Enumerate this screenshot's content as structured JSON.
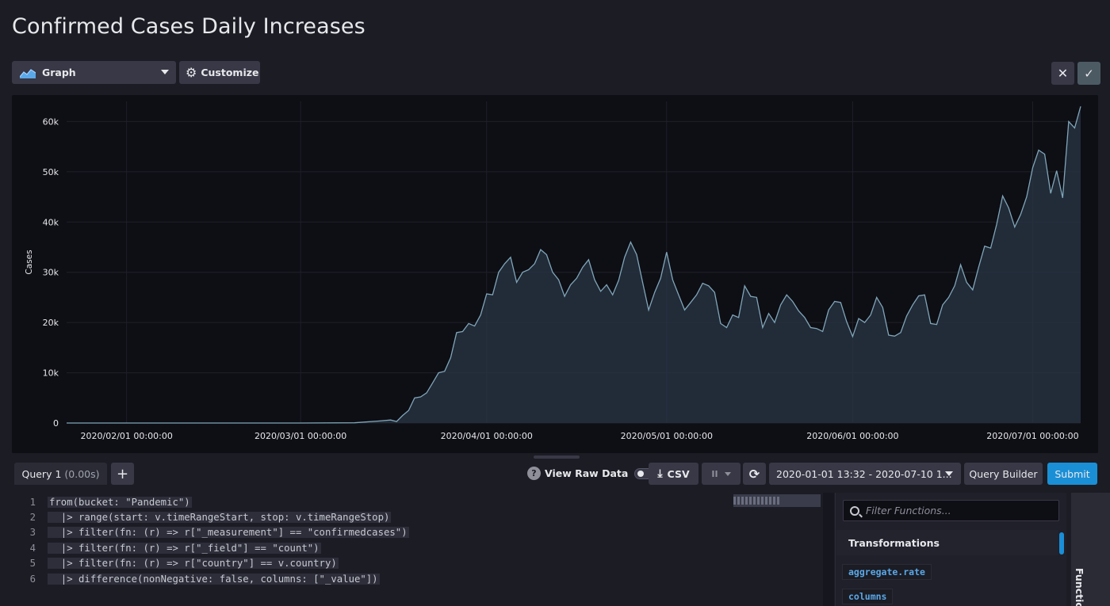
{
  "page": {
    "title": "Confirmed Cases Daily Increases"
  },
  "toolbar": {
    "view_type": "Graph",
    "customize_label": "Customize",
    "close_icon": "close-icon",
    "confirm_icon": "check-icon"
  },
  "chart_data": {
    "type": "area",
    "title": "",
    "ylabel": "Cases",
    "xlabel": "",
    "ylim": [
      0,
      64000
    ],
    "yticks": [
      0,
      10000,
      20000,
      30000,
      40000,
      50000,
      60000
    ],
    "ytick_labels": [
      "0",
      "10k",
      "20k",
      "30k",
      "40k",
      "50k",
      "60k"
    ],
    "xtick_labels": [
      "2020/02/01 00:00:00",
      "2020/03/01 00:00:00",
      "2020/04/01 00:00:00",
      "2020/05/01 00:00:00",
      "2020/06/01 00:00:00",
      "2020/07/01 00:00:00"
    ],
    "x_range": [
      "2020-01-22",
      "2020-07-09"
    ],
    "grid": true,
    "line_color": "#7fa6b8",
    "fill_color": "#2a3644",
    "series": [
      {
        "x": [
          "2020-01-22",
          "2020-02-01",
          "2020-02-15",
          "2020-03-01",
          "2020-03-10",
          "2020-03-14",
          "2020-03-16",
          "2020-03-17",
          "2020-03-18",
          "2020-03-19",
          "2020-03-20",
          "2020-03-21",
          "2020-03-22",
          "2020-03-23",
          "2020-03-24",
          "2020-03-25",
          "2020-03-26",
          "2020-03-27",
          "2020-03-28",
          "2020-03-29",
          "2020-03-30",
          "2020-03-31",
          "2020-04-01",
          "2020-04-02",
          "2020-04-03",
          "2020-04-04",
          "2020-04-05",
          "2020-04-06",
          "2020-04-07",
          "2020-04-08",
          "2020-04-09",
          "2020-04-10",
          "2020-04-11",
          "2020-04-12",
          "2020-04-13",
          "2020-04-14",
          "2020-04-15",
          "2020-04-16",
          "2020-04-17",
          "2020-04-18",
          "2020-04-19",
          "2020-04-20",
          "2020-04-21",
          "2020-04-22",
          "2020-04-23",
          "2020-04-24",
          "2020-04-25",
          "2020-04-26",
          "2020-04-27",
          "2020-04-28",
          "2020-04-29",
          "2020-04-30",
          "2020-05-01",
          "2020-05-02",
          "2020-05-03",
          "2020-05-04",
          "2020-05-05",
          "2020-05-06",
          "2020-05-07",
          "2020-05-08",
          "2020-05-09",
          "2020-05-10",
          "2020-05-11",
          "2020-05-12",
          "2020-05-13",
          "2020-05-14",
          "2020-05-15",
          "2020-05-16",
          "2020-05-17",
          "2020-05-18",
          "2020-05-19",
          "2020-05-20",
          "2020-05-21",
          "2020-05-22",
          "2020-05-23",
          "2020-05-24",
          "2020-05-25",
          "2020-05-26",
          "2020-05-27",
          "2020-05-28",
          "2020-05-29",
          "2020-05-30",
          "2020-05-31",
          "2020-06-01",
          "2020-06-02",
          "2020-06-03",
          "2020-06-04",
          "2020-06-05",
          "2020-06-06",
          "2020-06-07",
          "2020-06-08",
          "2020-06-09",
          "2020-06-10",
          "2020-06-11",
          "2020-06-12",
          "2020-06-13",
          "2020-06-14",
          "2020-06-15",
          "2020-06-16",
          "2020-06-17",
          "2020-06-18",
          "2020-06-19",
          "2020-06-20",
          "2020-06-21",
          "2020-06-22",
          "2020-06-23",
          "2020-06-24",
          "2020-06-25",
          "2020-06-26",
          "2020-06-27",
          "2020-06-28",
          "2020-06-29",
          "2020-06-30",
          "2020-07-01",
          "2020-07-02",
          "2020-07-03",
          "2020-07-04",
          "2020-07-05",
          "2020-07-06",
          "2020-07-07",
          "2020-07-08",
          "2020-07-09"
        ],
        "values": [
          0,
          0,
          0,
          0,
          50,
          400,
          600,
          300,
          1500,
          2500,
          5000,
          5200,
          6000,
          8000,
          10000,
          10300,
          13000,
          18000,
          18200,
          19800,
          19300,
          21500,
          25700,
          25500,
          30000,
          31700,
          33000,
          28000,
          30000,
          30500,
          31700,
          34500,
          33500,
          30000,
          28500,
          25200,
          27500,
          28800,
          31000,
          32500,
          28500,
          26200,
          27500,
          25500,
          28400,
          33000,
          36000,
          33500,
          28000,
          22500,
          26000,
          28800,
          34000,
          28500,
          25500,
          22500,
          24000,
          25500,
          27800,
          27300,
          26000,
          19800,
          19000,
          21500,
          21000,
          27300,
          25200,
          25000,
          19000,
          21800,
          20000,
          23500,
          25500,
          24200,
          22300,
          21000,
          19000,
          18800,
          18200,
          22500,
          24200,
          24000,
          20200,
          17200,
          20800,
          20000,
          21500,
          25000,
          23000,
          17500,
          17300,
          18000,
          21300,
          23500,
          25300,
          25500,
          19800,
          19600,
          23500,
          25000,
          27300,
          31500,
          28000,
          26500,
          31000,
          35200,
          34800,
          39500,
          45200,
          42800,
          39000,
          41500,
          45000,
          50800,
          54300,
          53500,
          45700,
          50200,
          44800,
          60000,
          58700,
          63000
        ]
      }
    ]
  },
  "query": {
    "tab_label": "Query 1",
    "tab_time": "(0.00s)",
    "add_label": "+",
    "view_raw_label": "View Raw Data",
    "csv_label": "CSV",
    "pause_label": "II",
    "time_range": "2020-01-01 13:32 - 2020-07-10 1...",
    "query_builder_label": "Query Builder",
    "submit_label": "Submit"
  },
  "editor": {
    "lines": [
      {
        "num": "1",
        "code": "from(bucket: \"Pandemic\")"
      },
      {
        "num": "2",
        "code": "  |> range(start: v.timeRangeStart, stop: v.timeRangeStop)"
      },
      {
        "num": "3",
        "code": "  |> filter(fn: (r) => r[\"_measurement\"] == \"confirmedcases\")"
      },
      {
        "num": "4",
        "code": "  |> filter(fn: (r) => r[\"_field\"] == \"count\")"
      },
      {
        "num": "5",
        "code": "  |> filter(fn: (r) => r[\"country\"] == v.country)"
      },
      {
        "num": "6",
        "code": "  |> difference(nonNegative: false, columns: [\"_value\"])"
      }
    ]
  },
  "functions": {
    "search_placeholder": "Filter Functions...",
    "category": "Transformations",
    "items": [
      "aggregate.rate",
      "columns"
    ],
    "side_tab": "Functio"
  }
}
